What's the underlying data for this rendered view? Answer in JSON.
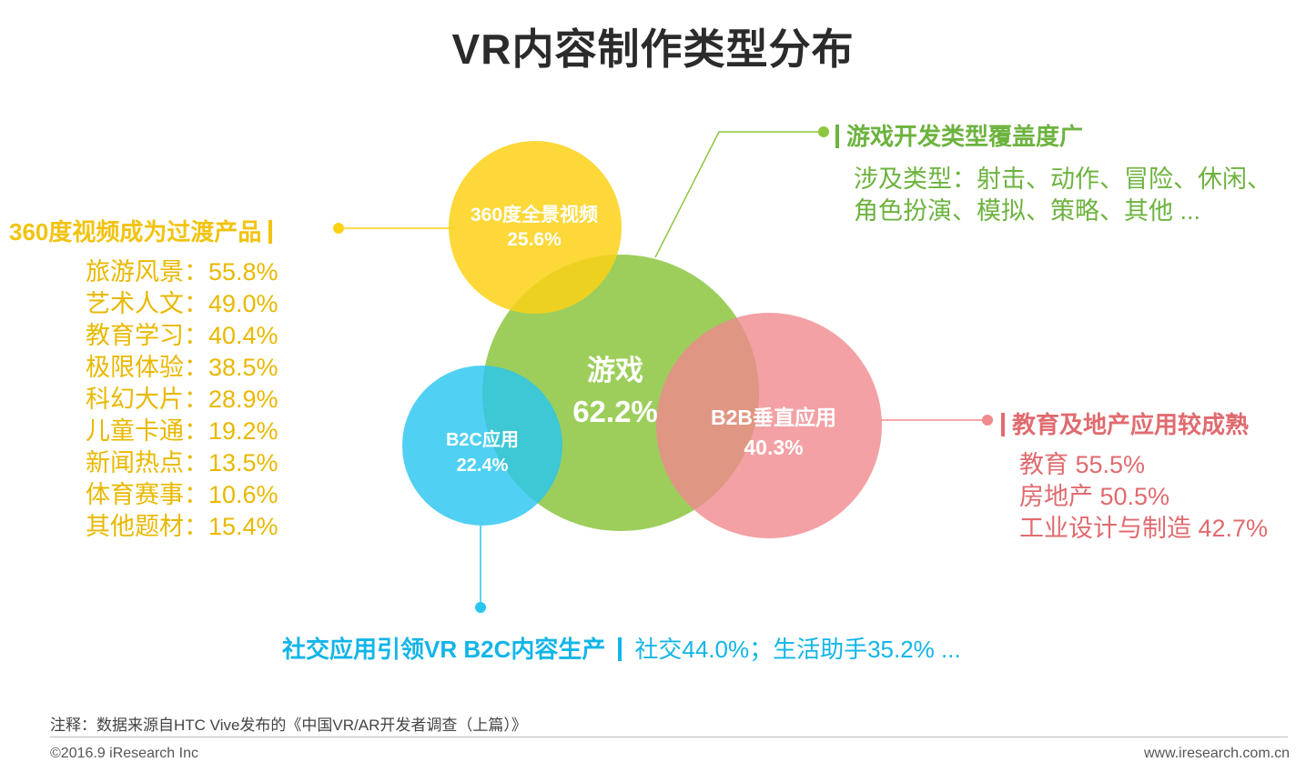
{
  "title": "VR内容制作类型分布",
  "chart_data": {
    "type": "bubble",
    "title": "VR内容制作类型分布",
    "bubbles": [
      {
        "label": "游戏",
        "value": "62.2%",
        "pct": 62.2,
        "color": "#8cc63f"
      },
      {
        "label": "360度全景视频",
        "value": "25.6%",
        "pct": 25.6,
        "color": "#fcd116"
      },
      {
        "label": "B2B垂直应用",
        "value": "40.3%",
        "pct": 40.3,
        "color": "#f08a8e"
      },
      {
        "label": "B2C应用",
        "value": "22.4%",
        "pct": 22.4,
        "color": "#29c6f0"
      }
    ]
  },
  "left": {
    "heading": "360度视频成为过渡产品",
    "items": [
      "旅游风景：55.8%",
      "艺术人文：49.0%",
      "教育学习：40.4%",
      "极限体验：38.5%",
      "科幻大片：28.9%",
      "儿童卡通：19.2%",
      "新闻热点：13.5%",
      "体育赛事：10.6%",
      "其他题材：15.4%"
    ]
  },
  "top_right": {
    "heading": "游戏开发类型覆盖度广",
    "line1": "涉及类型：射击、动作、冒险、休闲、",
    "line2": "角色扮演、模拟、策略、其他 ..."
  },
  "right": {
    "heading": "教育及地产应用较成熟",
    "items": [
      "教育 55.5%",
      "房地产 50.5%",
      "工业设计与制造 42.7%"
    ]
  },
  "bottom": {
    "heading": "社交应用引领VR B2C内容生产",
    "text": "社交44.0%；生活助手35.2% ..."
  },
  "footer": {
    "note": "注释：数据来源自HTC Vive发布的《中国VR/AR开发者调查（上篇）》",
    "copyright": "©2016.9 iResearch Inc",
    "site": "www.iresearch.com.cn"
  }
}
